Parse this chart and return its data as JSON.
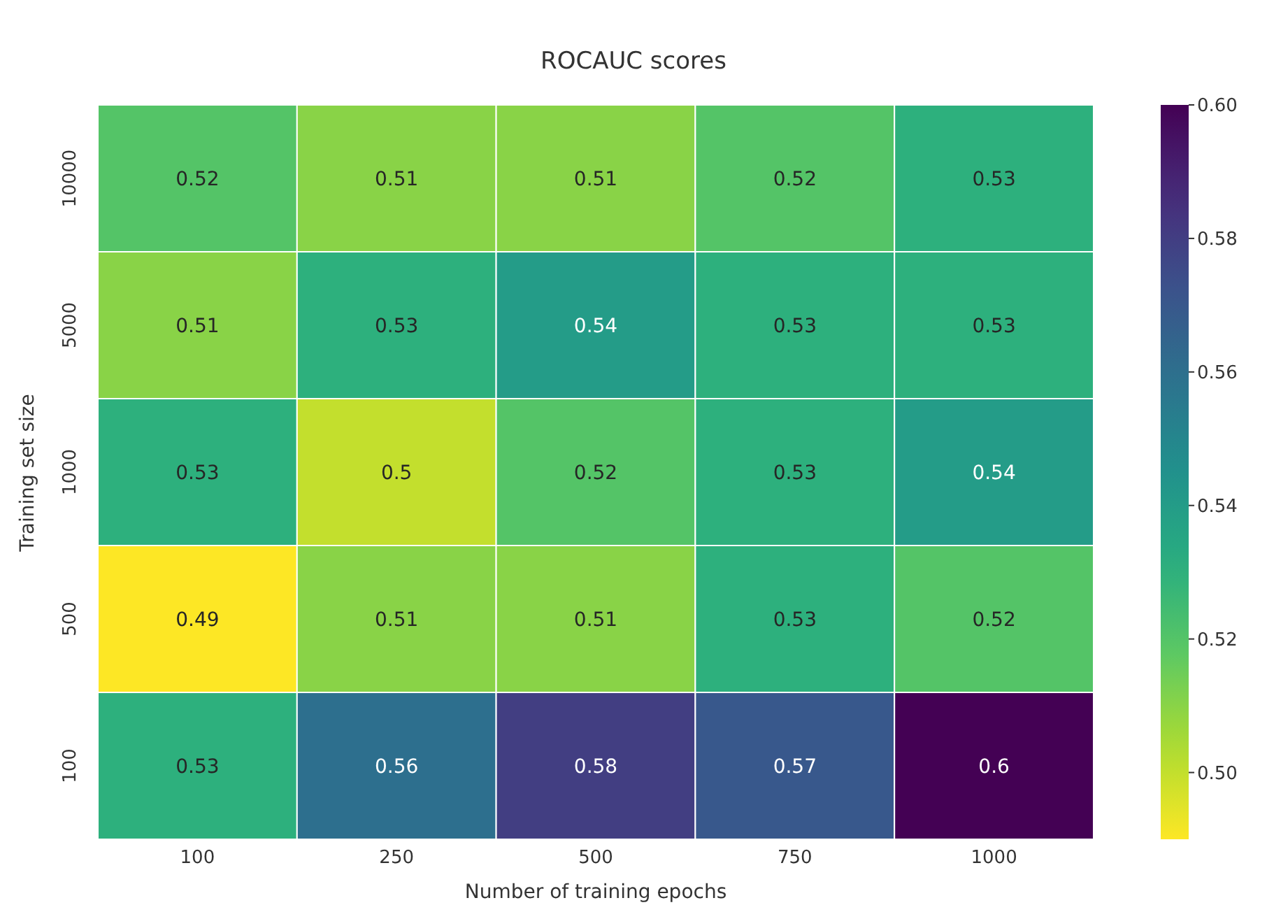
{
  "chart_data": {
    "type": "heatmap",
    "title": "ROCAUC scores",
    "xlabel": "Number of training epochs",
    "ylabel": "Training set size",
    "categories": [
      "100",
      "250",
      "500",
      "750",
      "1000"
    ],
    "y_categories": [
      "10000",
      "5000",
      "1000",
      "500",
      "100"
    ],
    "cells": [
      [
        0.52,
        0.51,
        0.51,
        0.52,
        0.53
      ],
      [
        0.51,
        0.53,
        0.54,
        0.53,
        0.53
      ],
      [
        0.53,
        0.5,
        0.52,
        0.53,
        0.54
      ],
      [
        0.49,
        0.51,
        0.51,
        0.53,
        0.52
      ],
      [
        0.53,
        0.56,
        0.58,
        0.57,
        0.6
      ]
    ],
    "data_labels": true,
    "clim": [
      0.49,
      0.6
    ],
    "cticks": [
      {
        "value": 0.5,
        "label": "0.50"
      },
      0.52,
      0.54,
      0.56,
      0.58,
      {
        "value": 0.6,
        "label": "0.60"
      }
    ]
  }
}
